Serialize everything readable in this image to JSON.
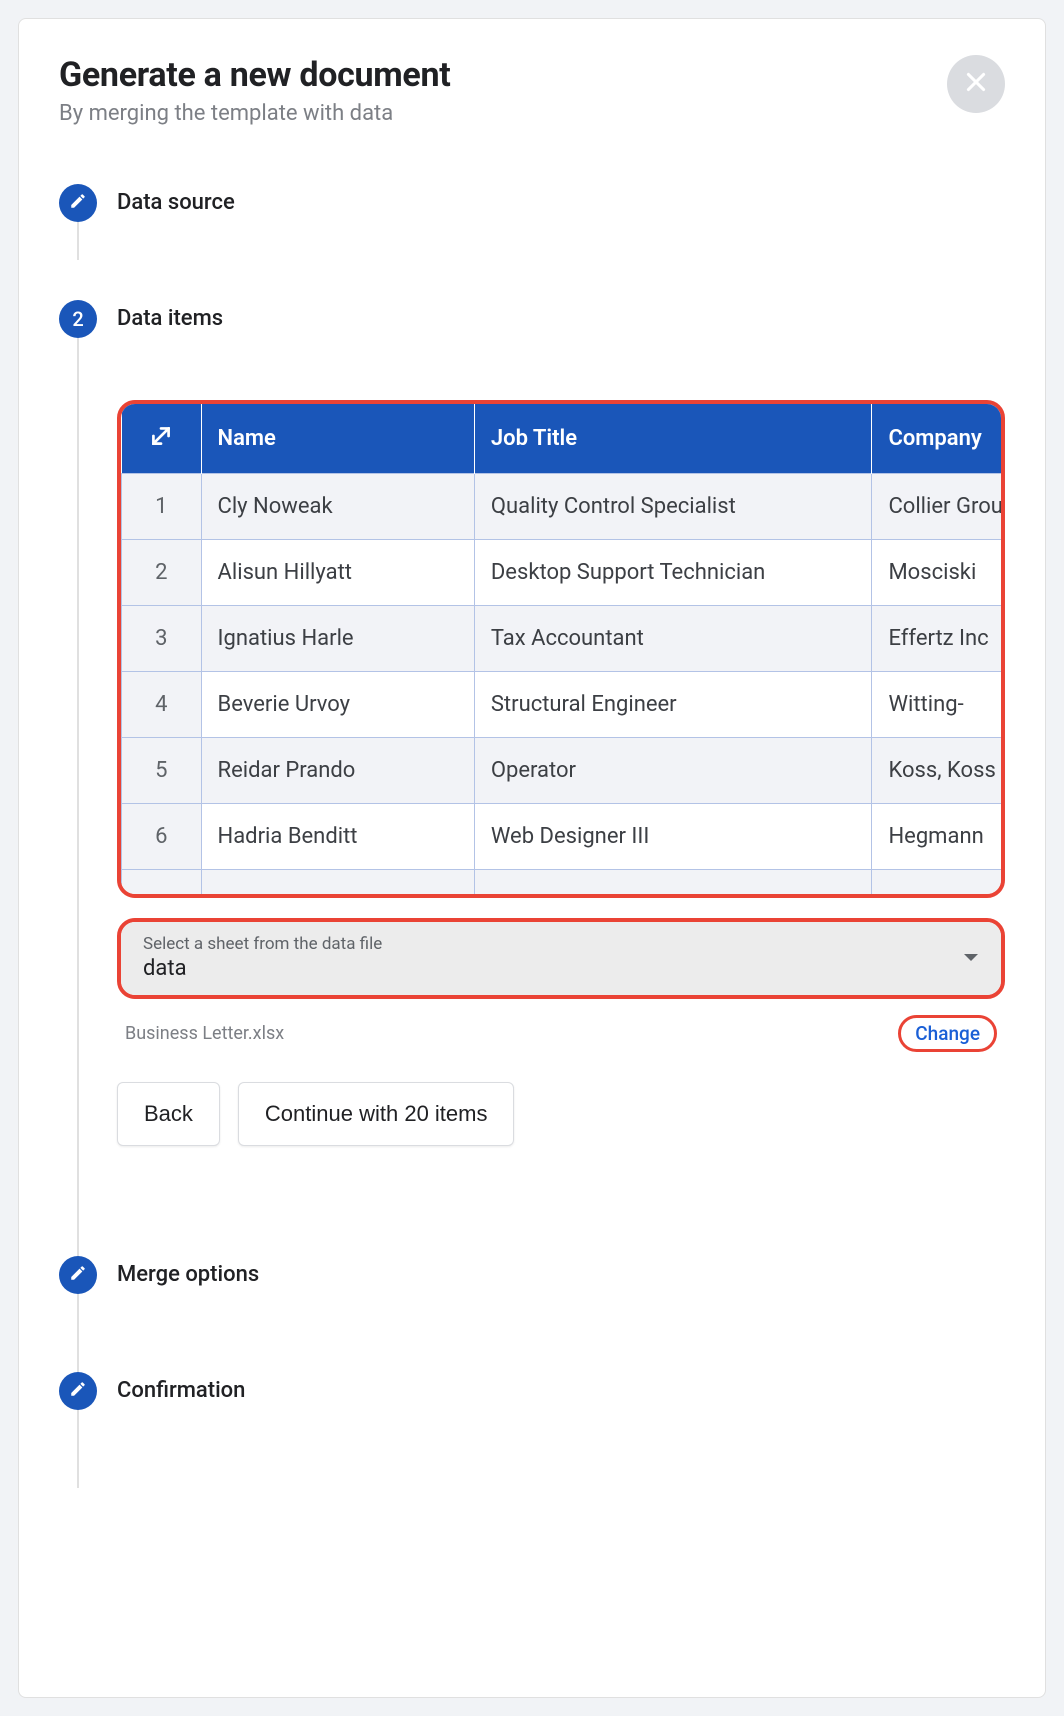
{
  "dialog": {
    "title": "Generate a new document",
    "subtitle": "By merging the template with data"
  },
  "steps": {
    "data_source": "Data source",
    "data_items": {
      "number": "2",
      "label": "Data items"
    },
    "merge_options": "Merge options",
    "confirmation": "Confirmation"
  },
  "table": {
    "columns": [
      "",
      "Name",
      "Job Title",
      "Company"
    ],
    "rows": [
      [
        "1",
        "Cly Noweak",
        "Quality Control Specialist",
        "Collier Group"
      ],
      [
        "2",
        "Alisun Hillyatt",
        "Desktop Support Technician",
        "Mosciski"
      ],
      [
        "3",
        "Ignatius Harle",
        "Tax Accountant",
        "Effertz Inc"
      ],
      [
        "4",
        "Beverie Urvoy",
        "Structural Engineer",
        "Witting-"
      ],
      [
        "5",
        "Reidar Prando",
        "Operator",
        "Koss, Koss"
      ],
      [
        "6",
        "Hadria Benditt",
        "Web Designer III",
        "Hegmann"
      ]
    ]
  },
  "sheet_select": {
    "label": "Select a sheet from the data file",
    "value": "data"
  },
  "file": {
    "name": "Business Letter.xlsx",
    "change": "Change"
  },
  "buttons": {
    "back": "Back",
    "continue": "Continue with 20 items"
  },
  "colors": {
    "primary": "#1a56b9",
    "highlight_border": "#ea4335",
    "close_bg": "#dadce0",
    "row_alt": "#f2f3f7",
    "table_border": "#b3c3e6",
    "link": "#1a5fd6"
  }
}
